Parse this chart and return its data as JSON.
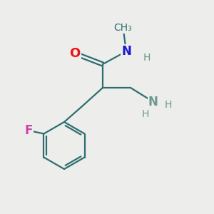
{
  "background_color": "#ededec",
  "bond_color": "#2d6e6e",
  "O_color": "#ee1111",
  "N_color": "#1a1acc",
  "F_color": "#cc44aa",
  "NH_color": "#6a9a8a",
  "bond_width": 1.6,
  "figsize": [
    3.0,
    3.0
  ],
  "dpi": 100,
  "xlim": [
    0.0,
    10.0
  ],
  "ylim": [
    0.0,
    10.0
  ]
}
